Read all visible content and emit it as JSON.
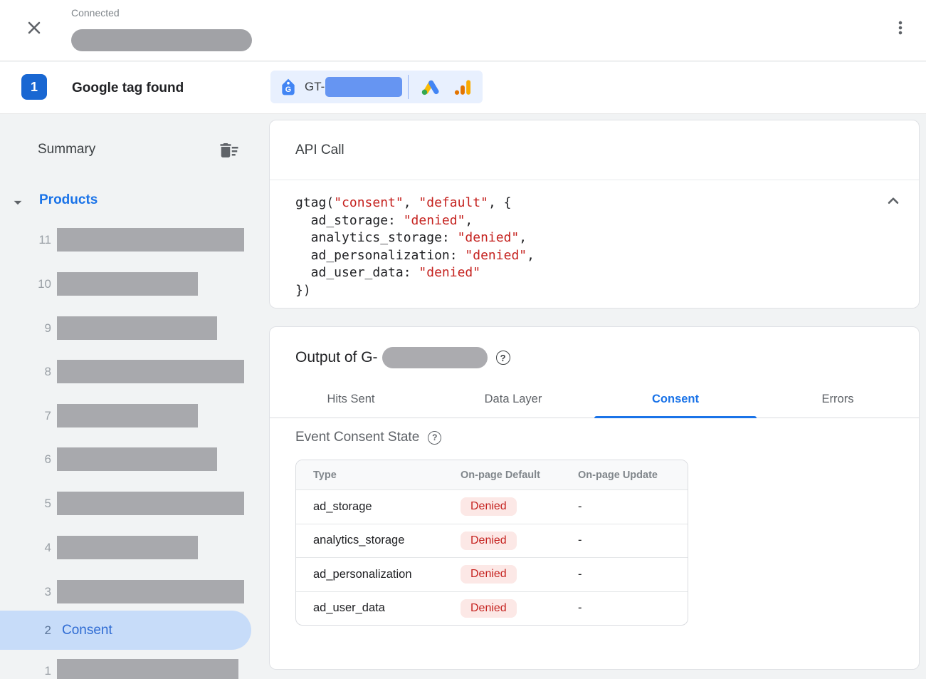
{
  "topbar": {
    "connected_label": "Connected",
    "status_value_redacted": true
  },
  "found_row": {
    "badge": "1",
    "title": "Google tag found",
    "chip": {
      "prefix": "GT-",
      "id_redacted": true
    }
  },
  "sidebar": {
    "summary_label": "Summary",
    "products_label": "Products",
    "items": [
      {
        "num": "11",
        "redacted": true
      },
      {
        "num": "10",
        "redacted": true
      },
      {
        "num": "9",
        "redacted": true
      },
      {
        "num": "8",
        "redacted": true
      },
      {
        "num": "7",
        "redacted": true
      },
      {
        "num": "6",
        "redacted": true
      },
      {
        "num": "5",
        "redacted": true
      },
      {
        "num": "4",
        "redacted": true
      },
      {
        "num": "3",
        "redacted": true
      },
      {
        "num": "2",
        "label": "Consent",
        "selected": true
      },
      {
        "num": "1",
        "redacted": true
      }
    ]
  },
  "api_call": {
    "title": "API Call",
    "code_lines": [
      [
        {
          "t": "gtag(",
          "s": "p"
        },
        {
          "t": "\"consent\"",
          "s": "r"
        },
        {
          "t": ", ",
          "s": "p"
        },
        {
          "t": "\"default\"",
          "s": "r"
        },
        {
          "t": ", {",
          "s": "p"
        }
      ],
      [
        {
          "t": "  ad_storage: ",
          "s": "p"
        },
        {
          "t": "\"denied\"",
          "s": "r"
        },
        {
          "t": ",",
          "s": "p"
        }
      ],
      [
        {
          "t": "  analytics_storage: ",
          "s": "p"
        },
        {
          "t": "\"denied\"",
          "s": "r"
        },
        {
          "t": ",",
          "s": "p"
        }
      ],
      [
        {
          "t": "  ad_personalization: ",
          "s": "p"
        },
        {
          "t": "\"denied\"",
          "s": "r"
        },
        {
          "t": ",",
          "s": "p"
        }
      ],
      [
        {
          "t": "  ad_user_data: ",
          "s": "p"
        },
        {
          "t": "\"denied\"",
          "s": "r"
        }
      ],
      [
        {
          "t": "})",
          "s": "p"
        }
      ]
    ]
  },
  "output": {
    "title_prefix": "Output of G-",
    "id_redacted": true,
    "tabs": [
      {
        "label": "Hits Sent"
      },
      {
        "label": "Data Layer"
      },
      {
        "label": "Consent",
        "active": true
      },
      {
        "label": "Errors"
      }
    ],
    "section_title": "Event Consent State",
    "table": {
      "headers": [
        "Type",
        "On-page Default",
        "On-page Update"
      ],
      "rows": [
        {
          "type": "ad_storage",
          "default": "Denied",
          "update": "-"
        },
        {
          "type": "analytics_storage",
          "default": "Denied",
          "update": "-"
        },
        {
          "type": "ad_personalization",
          "default": "Denied",
          "update": "-"
        },
        {
          "type": "ad_user_data",
          "default": "Denied",
          "update": "-"
        }
      ]
    }
  },
  "icons": {
    "help_glyph": "?",
    "names": [
      "close-icon",
      "kebab-menu-icon",
      "google-tag-icon",
      "google-ads-icon",
      "google-analytics-icon",
      "delete-sweep-icon",
      "caret-down-icon",
      "chevron-up-icon",
      "help-icon"
    ]
  },
  "colors": {
    "accent_blue": "#1a73e8",
    "badge_blue": "#1967d2",
    "chip_bg": "#e8f0fe",
    "chip_redaction_blue": "#6695f2",
    "selected_pill_bg": "#c7dcf9",
    "code_string_red": "#c5221f",
    "denied_text": "#c5221f",
    "denied_bg": "#fce8e6",
    "redaction_gray": "#a8a9ad",
    "ads_yellow": "#FBBC04",
    "ads_blue": "#4285F4",
    "ads_green": "#34A853",
    "ga_amber": "#F9AB00",
    "ga_orange": "#E37400"
  }
}
